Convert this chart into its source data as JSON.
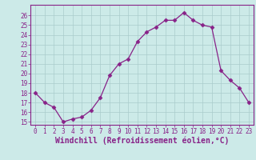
{
  "x": [
    0,
    1,
    2,
    3,
    4,
    5,
    6,
    7,
    8,
    9,
    10,
    11,
    12,
    13,
    14,
    15,
    16,
    17,
    18,
    19,
    20,
    21,
    22,
    23
  ],
  "y": [
    18,
    17,
    16.5,
    15,
    15.3,
    15.5,
    16.2,
    17.5,
    19.8,
    21.0,
    21.5,
    23.3,
    24.3,
    24.8,
    25.5,
    25.5,
    26.3,
    25.5,
    25.0,
    24.8,
    20.3,
    19.3,
    18.5,
    17.0
  ],
  "line_color": "#882288",
  "marker": "D",
  "marker_size": 2.5,
  "bg_color": "#cceae8",
  "grid_color": "#aacccc",
  "xlabel": "Windchill (Refroidissement éolien,°C)",
  "xlabel_color": "#882288",
  "ylim_min": 15,
  "ylim_max": 27,
  "xlim_min": 0,
  "xlim_max": 23,
  "yticks": [
    15,
    16,
    17,
    18,
    19,
    20,
    21,
    22,
    23,
    24,
    25,
    26
  ],
  "xticks": [
    0,
    1,
    2,
    3,
    4,
    5,
    6,
    7,
    8,
    9,
    10,
    11,
    12,
    13,
    14,
    15,
    16,
    17,
    18,
    19,
    20,
    21,
    22,
    23
  ],
  "tick_color": "#882288",
  "tick_fontsize": 5.5,
  "xlabel_fontsize": 7.0,
  "spine_color": "#882288",
  "linewidth": 0.9
}
